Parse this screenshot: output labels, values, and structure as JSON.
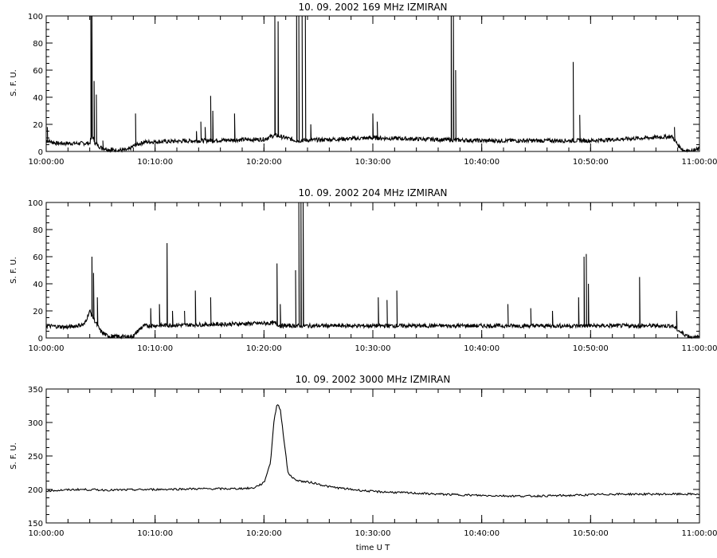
{
  "figure": {
    "xlabel": "time  U T",
    "x_ticks": [
      "10:00:00",
      "10:10:00",
      "10:20:00",
      "10:30:00",
      "10:40:00",
      "10:50:00",
      "11:00:00"
    ]
  },
  "chart_data": [
    {
      "type": "line",
      "title": "10.  09.  2002    169 MHz    IZMIRAN",
      "ylabel": "S. F. U.",
      "xlim": [
        "10:00:00",
        "11:00:00"
      ],
      "ylim": [
        0,
        100
      ],
      "y_ticks": [
        0,
        20,
        40,
        60,
        80,
        100
      ],
      "x_ticks": [
        "10:00:00",
        "10:10:00",
        "10:20:00",
        "10:30:00",
        "10:40:00",
        "10:50:00",
        "11:00:00"
      ],
      "series": [
        {
          "baseline": [
            [
              0,
              8
            ],
            [
              1,
              6
            ],
            [
              3,
              6
            ],
            [
              4,
              6
            ],
            [
              4.2,
              12
            ],
            [
              4.5,
              6
            ],
            [
              5,
              3
            ],
            [
              6,
              1
            ],
            [
              7.5,
              1
            ],
            [
              8,
              4
            ],
            [
              9,
              7
            ],
            [
              20,
              9
            ],
            [
              21,
              12
            ],
            [
              22,
              10
            ],
            [
              23,
              8
            ],
            [
              30,
              10
            ],
            [
              40,
              8
            ],
            [
              50,
              8
            ],
            [
              57.5,
              11
            ],
            [
              58,
              5
            ],
            [
              58.5,
              1
            ],
            [
              59.2,
              0
            ],
            [
              60,
              2
            ]
          ],
          "spikes": [
            [
              0.1,
              18
            ],
            [
              4.1,
              100
            ],
            [
              4.2,
              100
            ],
            [
              4.4,
              52
            ],
            [
              4.6,
              42
            ],
            [
              5.2,
              8
            ],
            [
              8.2,
              28
            ],
            [
              13.8,
              15
            ],
            [
              14.2,
              22
            ],
            [
              14.6,
              18
            ],
            [
              15.1,
              41
            ],
            [
              15.3,
              30
            ],
            [
              17.3,
              28
            ],
            [
              21,
              100
            ],
            [
              21.3,
              96
            ],
            [
              23,
              100
            ],
            [
              23.2,
              100
            ],
            [
              23.5,
              100
            ],
            [
              23.8,
              100
            ],
            [
              24.3,
              20
            ],
            [
              30,
              28
            ],
            [
              30.4,
              22
            ],
            [
              37.2,
              100
            ],
            [
              37.4,
              100
            ],
            [
              37.6,
              60
            ],
            [
              48.4,
              66
            ],
            [
              49,
              27
            ],
            [
              57.7,
              18
            ]
          ]
        }
      ]
    },
    {
      "type": "line",
      "title": "10.  09.  2002    204 MHz    IZMIRAN",
      "ylabel": "S. F. U.",
      "xlim": [
        "10:00:00",
        "11:00:00"
      ],
      "ylim": [
        0,
        100
      ],
      "y_ticks": [
        0,
        20,
        40,
        60,
        80,
        100
      ],
      "x_ticks": [
        "10:00:00",
        "10:10:00",
        "10:20:00",
        "10:30:00",
        "10:40:00",
        "10:50:00",
        "11:00:00"
      ],
      "series": [
        {
          "baseline": [
            [
              0,
              9
            ],
            [
              2,
              8
            ],
            [
              3.5,
              10
            ],
            [
              4,
              20
            ],
            [
              4.5,
              12
            ],
            [
              5,
              5
            ],
            [
              5.5,
              2
            ],
            [
              6,
              1
            ],
            [
              8,
              1
            ],
            [
              8.5,
              6
            ],
            [
              9,
              9
            ],
            [
              21,
              11
            ],
            [
              21.5,
              9
            ],
            [
              23,
              9
            ],
            [
              30,
              9
            ],
            [
              40,
              9
            ],
            [
              50,
              9
            ],
            [
              57.5,
              9
            ],
            [
              58.5,
              3
            ],
            [
              59.5,
              0
            ],
            [
              60,
              1
            ]
          ],
          "spikes": [
            [
              4.2,
              60
            ],
            [
              4.35,
              48
            ],
            [
              4.7,
              30
            ],
            [
              9.6,
              22
            ],
            [
              10.4,
              25
            ],
            [
              11.1,
              70
            ],
            [
              11.6,
              20
            ],
            [
              12.7,
              20
            ],
            [
              13.7,
              35
            ],
            [
              15.1,
              30
            ],
            [
              21.2,
              55
            ],
            [
              21.5,
              25
            ],
            [
              22.9,
              50
            ],
            [
              23.2,
              100
            ],
            [
              23.4,
              100
            ],
            [
              23.6,
              100
            ],
            [
              30.5,
              30
            ],
            [
              31.3,
              28
            ],
            [
              32.2,
              35
            ],
            [
              42.4,
              25
            ],
            [
              44.5,
              22
            ],
            [
              46.5,
              20
            ],
            [
              48.9,
              30
            ],
            [
              49.4,
              60
            ],
            [
              49.6,
              62
            ],
            [
              49.8,
              40
            ],
            [
              54.5,
              45
            ],
            [
              57.9,
              20
            ]
          ]
        }
      ]
    },
    {
      "type": "line",
      "title": "10.  09.  2002    3000 MHz    IZMIRAN",
      "ylabel": "S. F. U.",
      "xlim": [
        "10:00:00",
        "11:00:00"
      ],
      "ylim": [
        150,
        350
      ],
      "y_ticks": [
        150,
        200,
        250,
        300,
        350
      ],
      "x_ticks": [
        "10:00:00",
        "10:10:00",
        "10:20:00",
        "10:30:00",
        "10:40:00",
        "10:50:00",
        "11:00:00"
      ],
      "series": [
        {
          "points": [
            [
              0,
              198
            ],
            [
              3,
              200
            ],
            [
              6,
              199
            ],
            [
              10,
              200
            ],
            [
              14,
              201
            ],
            [
              17,
              201
            ],
            [
              19,
              202
            ],
            [
              20,
              210
            ],
            [
              20.6,
              240
            ],
            [
              20.9,
              300
            ],
            [
              21.2,
              328
            ],
            [
              21.5,
              320
            ],
            [
              21.8,
              280
            ],
            [
              22.2,
              225
            ],
            [
              22.8,
              215
            ],
            [
              23.5,
              212
            ],
            [
              24.5,
              210
            ],
            [
              26,
              204
            ],
            [
              28,
              200
            ],
            [
              30,
              197
            ],
            [
              33,
              195
            ],
            [
              36,
              193
            ],
            [
              40,
              191
            ],
            [
              44,
              190
            ],
            [
              48,
              191
            ],
            [
              52,
              193
            ],
            [
              56,
              193
            ],
            [
              60,
              193
            ]
          ]
        }
      ]
    }
  ]
}
